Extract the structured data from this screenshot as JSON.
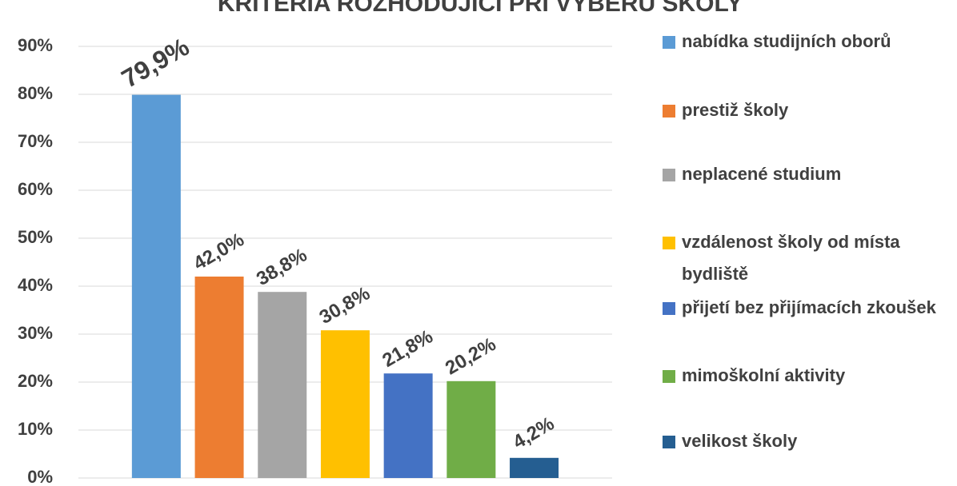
{
  "chart_data": {
    "type": "bar",
    "title": "KRITÉRIA ROZHODUJÍCÍ PŘI VÝBĚRU ŠKOLY",
    "categories": [
      "nabídka studijních oborů",
      "prestiž školy",
      "neplacené studium",
      "vzdálenost školy od místa bydliště",
      "přijetí bez přijímacích zkoušek",
      "mimoškolní aktivity",
      "velikost školy"
    ],
    "values": [
      79.9,
      42.0,
      38.8,
      30.8,
      21.8,
      20.2,
      4.2
    ],
    "value_labels": [
      "79,9%",
      "42,0%",
      "38,8%",
      "30,8%",
      "21,8%",
      "20,2%",
      "4,2%"
    ],
    "colors": [
      "#5b9bd5",
      "#ed7d31",
      "#a5a5a5",
      "#ffc000",
      "#4472c4",
      "#70ad47",
      "#255e91"
    ],
    "ylim": [
      0,
      90
    ],
    "yticks": [
      {
        "value": 0,
        "label": "0%"
      },
      {
        "value": 10,
        "label": "10%"
      },
      {
        "value": 20,
        "label": "20%"
      },
      {
        "value": 30,
        "label": "30%"
      },
      {
        "value": 40,
        "label": "40%"
      },
      {
        "value": 50,
        "label": "50%"
      },
      {
        "value": 60,
        "label": "60%"
      },
      {
        "value": 70,
        "label": "70%"
      },
      {
        "value": 80,
        "label": "80%"
      },
      {
        "value": 90,
        "label": "90%"
      }
    ],
    "grid": true,
    "legend": "right"
  }
}
